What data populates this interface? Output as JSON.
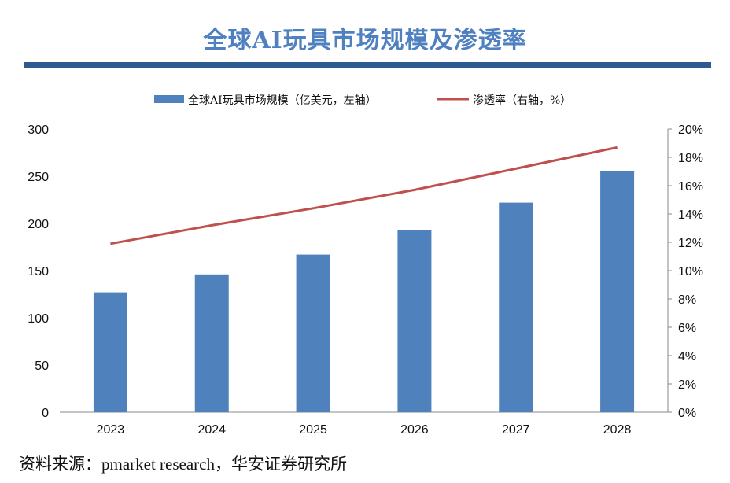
{
  "chart_data": {
    "type": "bar+line",
    "title": "全球AI玩具市场规模及渗透率",
    "categories": [
      "2023",
      "2024",
      "2025",
      "2026",
      "2027",
      "2028"
    ],
    "series": [
      {
        "name": "全球AI玩具市场规模（亿美元，左轴）",
        "type": "bar",
        "axis": "left",
        "values": [
          127,
          146,
          167,
          193,
          222,
          255
        ],
        "color": "#4f81bd"
      },
      {
        "name": "渗透率（右轴，%）",
        "type": "line",
        "axis": "right",
        "values": [
          11.9,
          13.2,
          14.4,
          15.7,
          17.2,
          18.7
        ],
        "color": "#c0504d"
      }
    ],
    "left_axis": {
      "ylim": [
        0,
        300
      ],
      "ticks": [
        "0",
        "50",
        "100",
        "150",
        "200",
        "250",
        "300"
      ]
    },
    "right_axis": {
      "ylim": [
        0,
        20
      ],
      "ticks": [
        "0%",
        "2%",
        "4%",
        "6%",
        "8%",
        "10%",
        "12%",
        "14%",
        "16%",
        "18%",
        "20%"
      ]
    },
    "legend": "top",
    "grid": false
  },
  "source": "资料来源：pmarket research，华安证券研究所"
}
